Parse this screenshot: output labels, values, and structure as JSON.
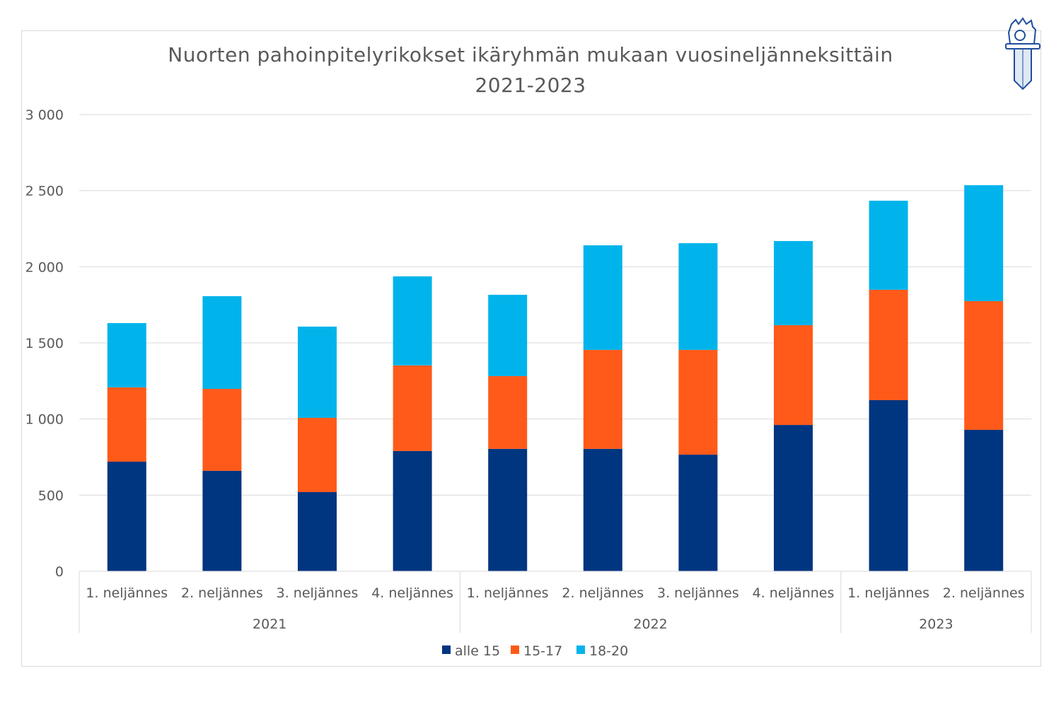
{
  "chart_data": {
    "type": "bar",
    "stacked": true,
    "title": "Nuorten pahoinpitelyrikokset ikäryhmän mukaan vuosineljänneksittäin 2021-2023",
    "title_lines": [
      "Nuorten pahoinpitelyrikokset  ikäryhmän mukaan vuosineljänneksittäin",
      "2021-2023"
    ],
    "categories": [
      "1. neljännes",
      "2. neljännes",
      "3. neljännes",
      "4. neljännes",
      "1. neljännes",
      "2. neljännes",
      "3. neljännes",
      "4. neljännes",
      "1. neljännes",
      "2. neljännes"
    ],
    "groups": [
      {
        "label": "2021",
        "count": 4
      },
      {
        "label": "2022",
        "count": 4
      },
      {
        "label": "2023",
        "count": 2
      }
    ],
    "series": [
      {
        "name": "alle 15",
        "color": "#003580",
        "values": [
          720,
          660,
          520,
          790,
          804,
          804,
          766,
          961,
          1124,
          929
        ]
      },
      {
        "name": "15-17",
        "color": "#ff5a19",
        "values": [
          488,
          538,
          488,
          562,
          478,
          650,
          688,
          655,
          725,
          845
        ]
      },
      {
        "name": "18-20",
        "color": "#00b4eb",
        "values": [
          422,
          609,
          599,
          585,
          534,
          687,
          701,
          553,
          585,
          762
        ]
      }
    ],
    "ylim": [
      0,
      3000
    ],
    "yticks": [
      0,
      500,
      1000,
      1500,
      2000,
      2500,
      3000
    ],
    "ytick_labels": [
      "0",
      "500",
      "1 000",
      "1 500",
      "2 000",
      "2 500",
      "3 000"
    ],
    "grid": true,
    "legend": "bottom"
  },
  "logo": {
    "name": "police-emblem-icon",
    "color": "#1f4e9c"
  }
}
